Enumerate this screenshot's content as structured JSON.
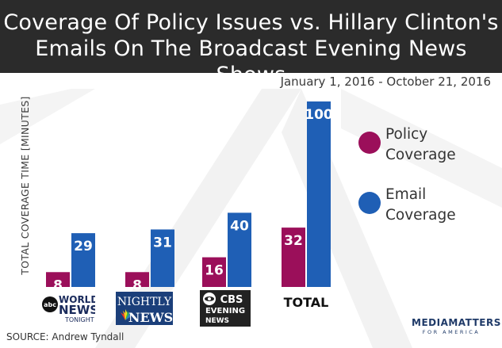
{
  "header": {
    "title_line1": "Coverage Of Policy Issues vs. Hillary Clinton's",
    "title_line2": "Emails On The Broadcast Evening News Shows"
  },
  "date_range": "January 1, 2016 - October 21, 2016",
  "source": "SOURCE: Andrew Tyndall",
  "brand": {
    "main": "MEDIAMATTERS",
    "sub": "FOR AMERICA"
  },
  "logos": {
    "abc": "WORLD NEWS TONIGHT",
    "nbc_top": "NIGHTLY",
    "nbc_bottom": "NEWS",
    "cbs_top": "CBS",
    "cbs_mid": "EVENING",
    "cbs_bottom": "NEWS"
  },
  "chart_data": {
    "type": "bar",
    "categories": [
      "ABC World News Tonight",
      "NBC Nightly News",
      "CBS Evening News",
      "TOTAL"
    ],
    "category_display": [
      "",
      "",
      "",
      "TOTAL"
    ],
    "series": [
      {
        "name": "Policy Coverage",
        "values": [
          8,
          8,
          16,
          32
        ],
        "color": "#9b0f5a"
      },
      {
        "name": "Email Coverage",
        "values": [
          29,
          31,
          40,
          100
        ],
        "color": "#1f5fb5"
      }
    ],
    "ylabel": "TOTAL COVERAGE TIME [MINUTES]",
    "legend": {
      "position": "right",
      "items": [
        "Policy Coverage",
        "Email Coverage"
      ],
      "lines": [
        [
          "Policy",
          "Coverage"
        ],
        [
          "Email",
          "Coverage"
        ]
      ]
    },
    "ylim": [
      0,
      100
    ],
    "grid": false
  }
}
